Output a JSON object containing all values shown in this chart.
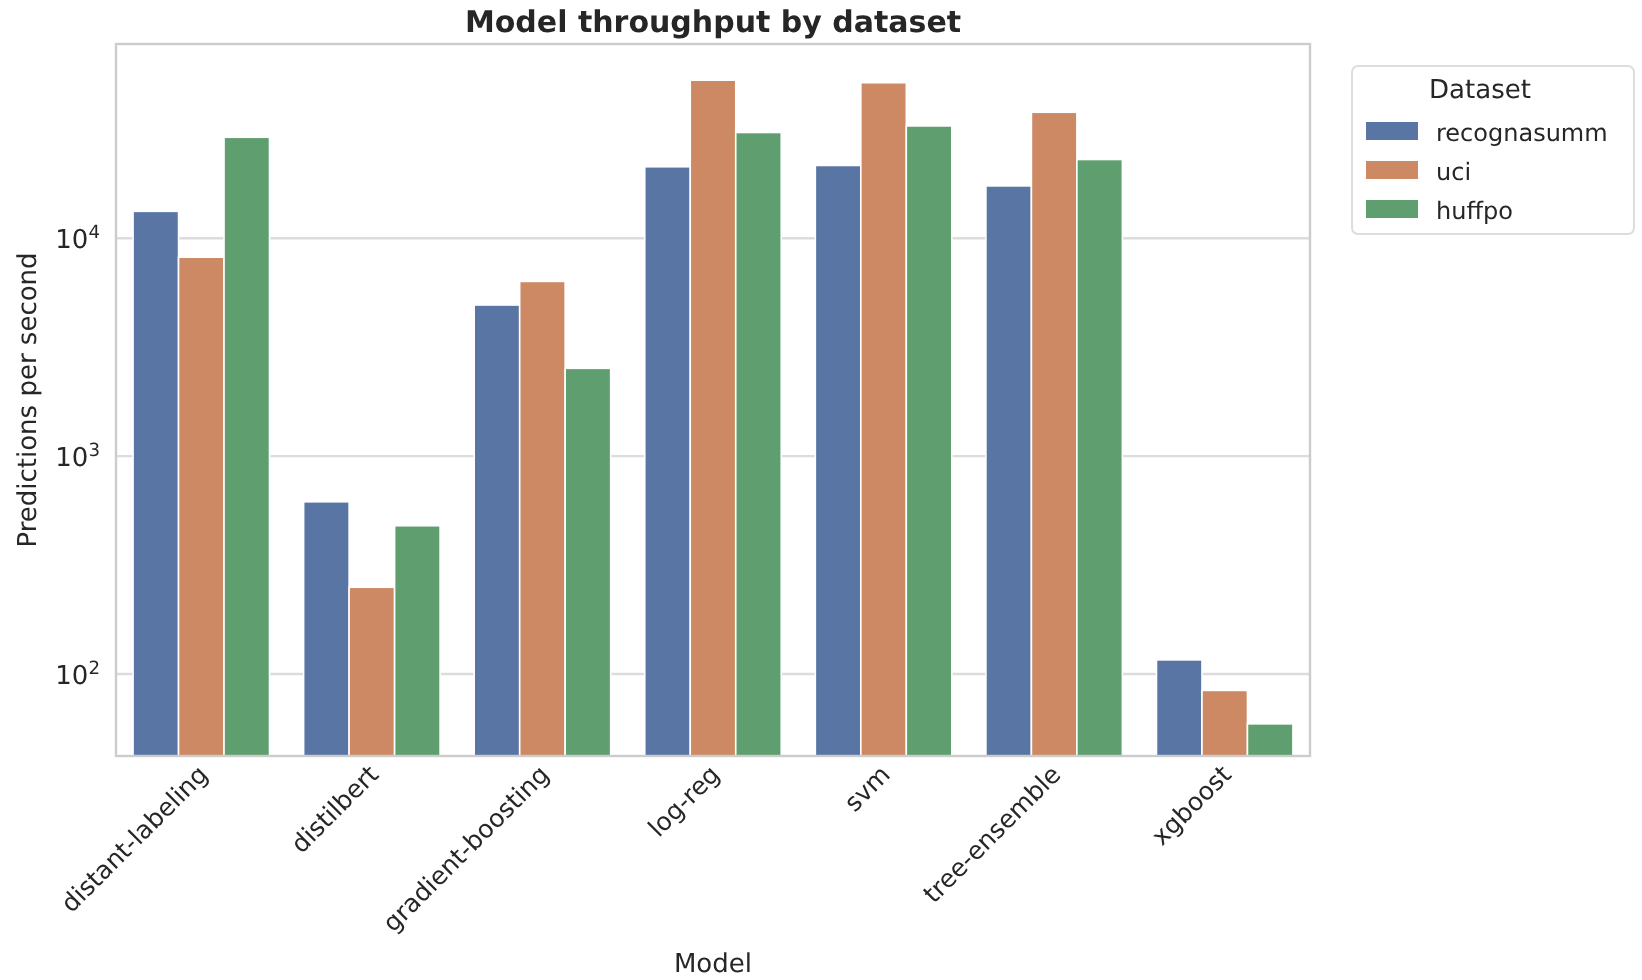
{
  "chart_data": {
    "type": "bar",
    "title": "Model throughput by dataset",
    "xlabel": "Model",
    "ylabel": "Predictions per second",
    "legend_title": "Dataset",
    "categories": [
      "distant-labeling",
      "distilbert",
      "gradient-boosting",
      "log-reg",
      "svm",
      "tree-ensemble",
      "xgboost"
    ],
    "series": [
      {
        "name": "recognasumm",
        "color": "#5975a4",
        "values": [
          13300,
          617,
          4940,
          21300,
          21600,
          17400,
          116
        ]
      },
      {
        "name": "uci",
        "color": "#cc8963",
        "values": [
          8190,
          250,
          6340,
          53200,
          51800,
          37900,
          84
        ]
      },
      {
        "name": "huffpo",
        "color": "#5f9e6e",
        "values": [
          29100,
          479,
          2530,
          30600,
          32800,
          23000,
          59
        ]
      }
    ],
    "log": true,
    "ylim": [
      42,
      78000
    ],
    "yticks": [
      {
        "value": 100,
        "label": "10$^{2}$"
      },
      {
        "value": 1000,
        "label": "10$^{3}$"
      },
      {
        "value": 10000,
        "label": "10$^{4}$"
      }
    ],
    "grid": "y",
    "legend": "top right"
  }
}
